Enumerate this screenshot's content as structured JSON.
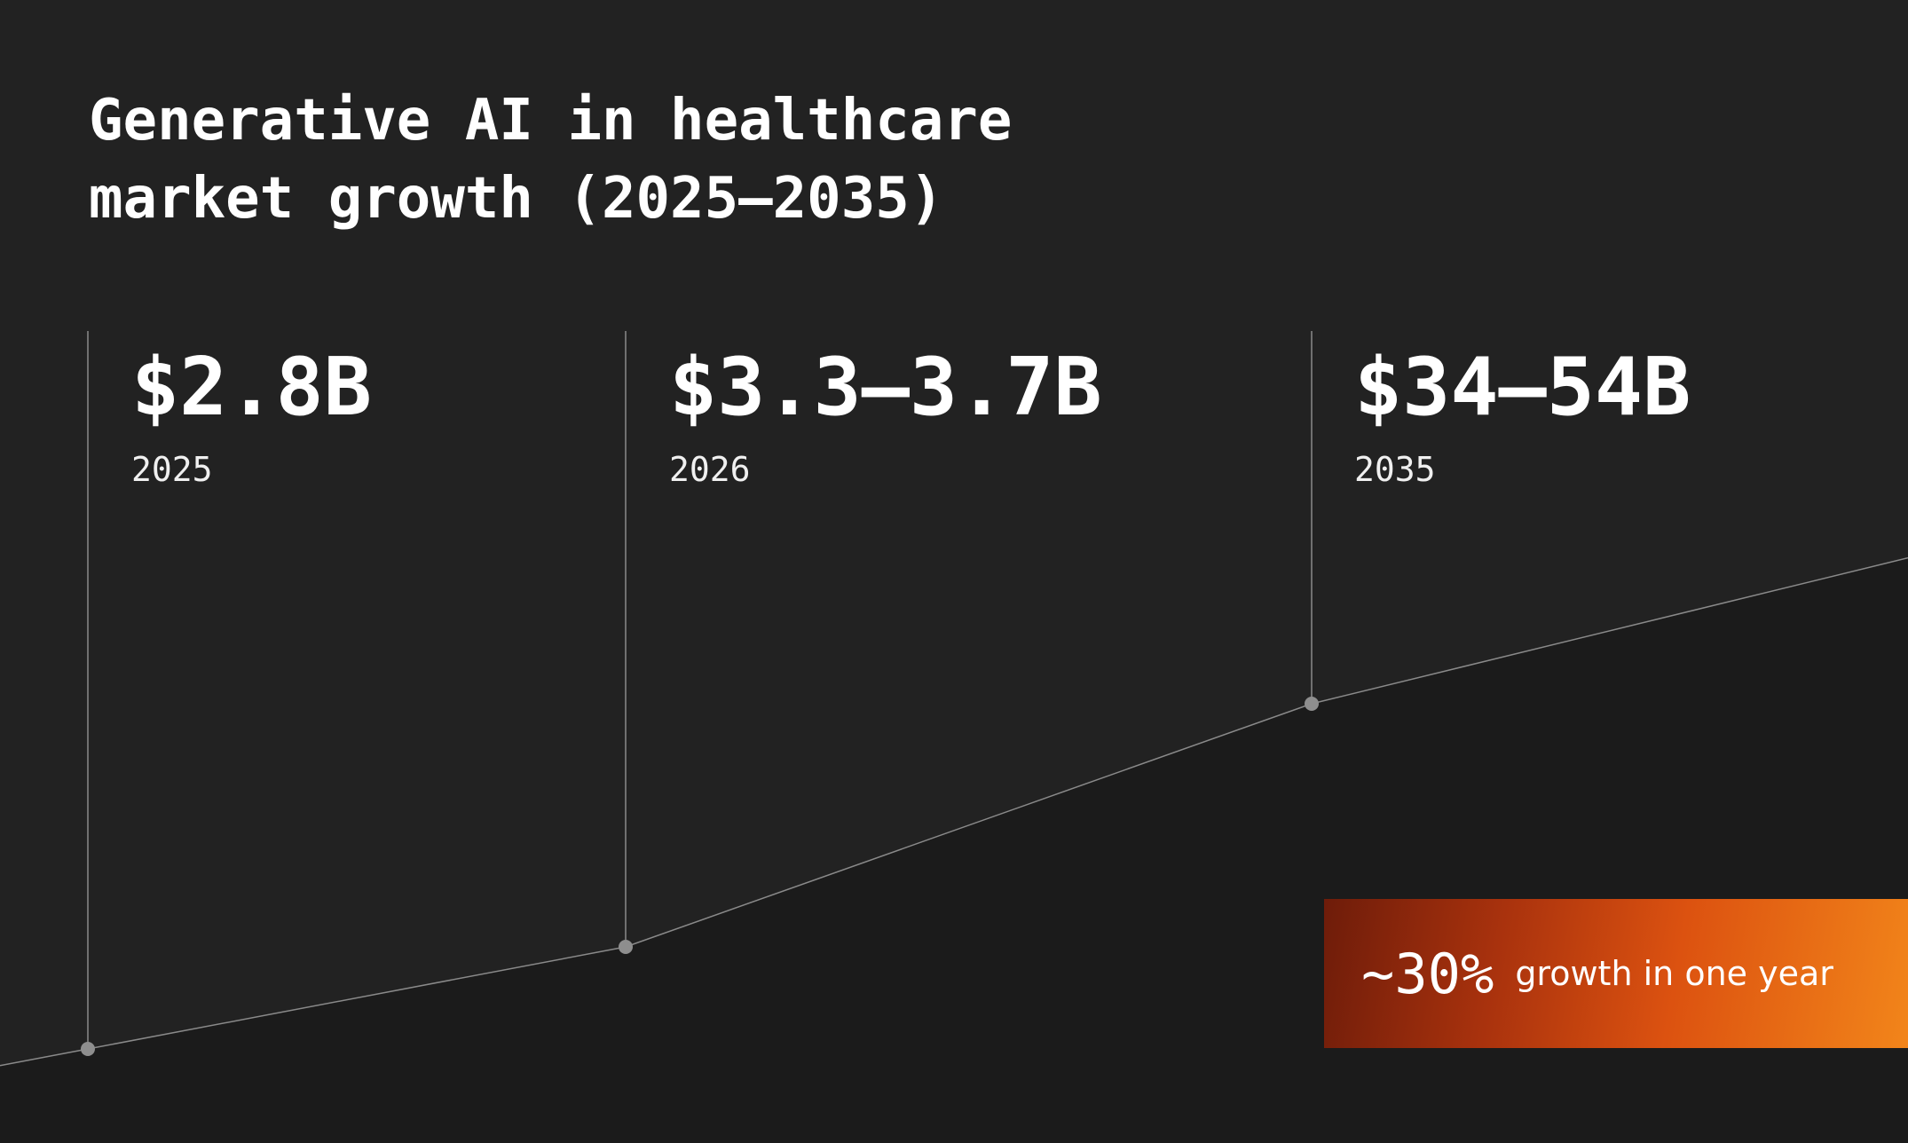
{
  "title": {
    "line1": "Generative AI in healthcare",
    "line2": "market growth (2025–2035)"
  },
  "stats": [
    {
      "value": "$2.8B",
      "year": "2025"
    },
    {
      "value": "$3.3–3.7B",
      "year": "2026"
    },
    {
      "value": "$34–54B",
      "year": "2035"
    }
  ],
  "callout": {
    "value": "~30%",
    "label": "growth in one year"
  },
  "colors": {
    "background": "#222222",
    "area_below_line": "#1b1b1b",
    "line": "#8a8a8a",
    "marker": "#8e8e8e",
    "text": "#ffffff",
    "callout_gradient": [
      "#6e1c0a",
      "#dc5210",
      "#f2851a"
    ]
  },
  "chart_data": {
    "type": "line",
    "title": "Generative AI in healthcare market growth (2025–2035)",
    "x": [
      2025,
      2026,
      2035
    ],
    "y_low": [
      2.8,
      3.3,
      34
    ],
    "y_high": [
      2.8,
      3.7,
      54
    ],
    "value_labels": [
      "$2.8B",
      "$3.3–3.7B",
      "$34–54B"
    ],
    "unit": "B",
    "annotation": "~30% growth in one year",
    "grid": false,
    "legend": "none"
  }
}
